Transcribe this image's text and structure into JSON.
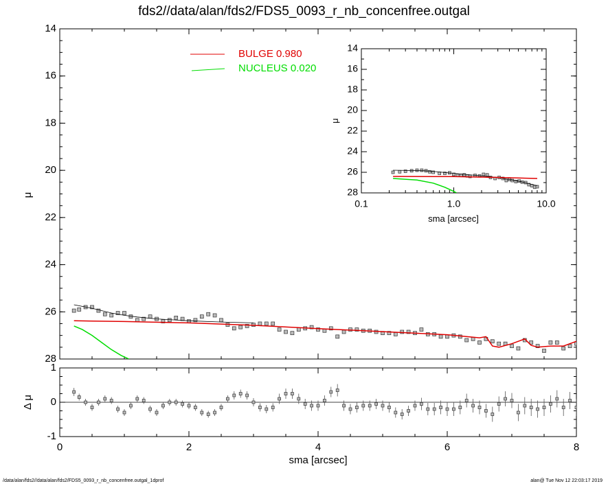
{
  "title": "fds2//data/alan/fds2/FDS5_0093_r_nb_concenfree.outgal",
  "footer": {
    "left": "/data/alan/fds2//data/alan/fds2/FDS5_0093_r_nb_concenfree.outgal_1dprof",
    "right": "alan@  Tue Nov 12 22:03:17 2019"
  },
  "colors": {
    "bulge": "#e00000",
    "nucleus": "#00dd00",
    "data": "#000000",
    "total": "#000000"
  },
  "chart_data": [
    {
      "id": "main-profile",
      "type": "scatter",
      "xlabel": "",
      "ylabel": "μ",
      "xlim": [
        0,
        8
      ],
      "ylim": [
        28,
        14
      ],
      "inverted_y": true,
      "xticks": [
        "0",
        "2",
        "4",
        "6",
        "8"
      ],
      "yticks": [
        "14",
        "16",
        "18",
        "20",
        "22",
        "24",
        "26",
        "28"
      ],
      "legend": [
        {
          "label": "BULGE  0.980",
          "color": "#e00000"
        },
        {
          "label": "NUCLEUS  0.020",
          "color": "#00dd00"
        }
      ],
      "legend_position": "top-center",
      "series": [
        {
          "name": "data",
          "kind": "markers",
          "x": [
            0.22,
            0.3,
            0.4,
            0.5,
            0.6,
            0.7,
            0.8,
            0.9,
            1.0,
            1.1,
            1.2,
            1.3,
            1.4,
            1.5,
            1.6,
            1.7,
            1.8,
            1.9,
            2.0,
            2.1,
            2.2,
            2.3,
            2.4,
            2.5,
            2.6,
            2.7,
            2.8,
            2.9,
            3.0,
            3.1,
            3.2,
            3.3,
            3.4,
            3.5,
            3.6,
            3.7,
            3.8,
            3.9,
            4.0,
            4.1,
            4.2,
            4.3,
            4.4,
            4.5,
            4.6,
            4.7,
            4.8,
            4.9,
            5.0,
            5.1,
            5.2,
            5.3,
            5.4,
            5.5,
            5.6,
            5.7,
            5.8,
            5.9,
            6.0,
            6.1,
            6.2,
            6.3,
            6.4,
            6.5,
            6.6,
            6.7,
            6.8,
            6.9,
            7.0,
            7.1,
            7.2,
            7.3,
            7.4,
            7.5,
            7.6,
            7.7,
            7.8,
            7.9,
            8.0
          ],
          "y": [
            25.95,
            25.9,
            25.8,
            25.8,
            25.95,
            26.1,
            26.15,
            26.05,
            26.05,
            26.2,
            26.35,
            26.3,
            26.2,
            26.3,
            26.4,
            26.35,
            26.25,
            26.3,
            26.4,
            26.35,
            26.2,
            26.1,
            26.15,
            26.35,
            26.55,
            26.7,
            26.65,
            26.6,
            26.55,
            26.5,
            26.5,
            26.5,
            26.75,
            26.85,
            26.9,
            26.75,
            26.7,
            26.65,
            26.75,
            26.8,
            26.7,
            27.05,
            26.85,
            26.75,
            26.75,
            26.8,
            26.8,
            26.85,
            26.9,
            26.9,
            26.95,
            26.85,
            26.85,
            26.9,
            26.75,
            26.95,
            26.95,
            27.05,
            27.05,
            27.0,
            27.05,
            27.2,
            27.15,
            27.3,
            27.15,
            27.25,
            27.35,
            27.35,
            27.45,
            27.55,
            27.2,
            27.3,
            27.45,
            27.65,
            27.3,
            27.3,
            27.55,
            27.45,
            27.35
          ]
        },
        {
          "name": "total",
          "kind": "line",
          "x": [
            0.22,
            0.5,
            0.8,
            1.0,
            1.2,
            1.5,
            2.0,
            2.5,
            3.0
          ],
          "y": [
            25.7,
            25.85,
            26.05,
            26.15,
            26.22,
            26.3,
            26.38,
            26.43,
            26.47
          ]
        },
        {
          "name": "bulge",
          "kind": "line",
          "x": [
            0.22,
            1.0,
            2.0,
            3.0,
            4.0,
            5.0,
            6.0,
            6.5,
            6.6,
            6.7,
            6.8,
            7.0,
            7.2,
            7.3,
            7.4,
            7.6,
            7.8,
            8.0
          ],
          "y": [
            26.38,
            26.41,
            26.47,
            26.57,
            26.71,
            26.84,
            26.97,
            27.1,
            27.05,
            27.45,
            27.5,
            27.35,
            27.15,
            27.42,
            27.5,
            27.45,
            27.45,
            27.25
          ]
        },
        {
          "name": "nucleus",
          "kind": "line",
          "x": [
            0.22,
            0.35,
            0.5,
            0.65,
            0.8,
            0.95,
            1.07
          ],
          "y": [
            26.6,
            26.75,
            27.0,
            27.3,
            27.6,
            27.85,
            28.0
          ]
        }
      ]
    },
    {
      "id": "inset-log",
      "type": "scatter",
      "xlabel": "sma [arcsec]",
      "ylabel": "μ",
      "xscale": "log",
      "xlim": [
        0.1,
        10.0
      ],
      "ylim": [
        28,
        14
      ],
      "inverted_y": true,
      "xticks": [
        "0.1",
        "1.0",
        "10.0"
      ],
      "yticks": [
        "14",
        "16",
        "18",
        "20",
        "22",
        "24",
        "26",
        "28"
      ],
      "series": [
        {
          "name": "data",
          "kind": "markers",
          "x": [
            0.22,
            0.26,
            0.3,
            0.35,
            0.4,
            0.45,
            0.5,
            0.55,
            0.6,
            0.7,
            0.8,
            0.9,
            1.0,
            1.1,
            1.2,
            1.3,
            1.4,
            1.5,
            1.7,
            1.9,
            2.1,
            2.3,
            2.5,
            2.8,
            3.1,
            3.4,
            3.7,
            4.0,
            4.3,
            4.7,
            5.1,
            5.5,
            6.0,
            6.5,
            7.0,
            7.5,
            8.0
          ],
          "y": [
            26.0,
            25.95,
            25.9,
            25.85,
            25.8,
            25.8,
            25.85,
            25.95,
            26.0,
            26.1,
            26.1,
            26.05,
            26.2,
            26.3,
            26.3,
            26.25,
            26.35,
            26.4,
            26.3,
            26.35,
            26.2,
            26.25,
            26.5,
            26.6,
            26.5,
            26.6,
            26.8,
            26.7,
            26.8,
            26.9,
            26.85,
            26.95,
            27.0,
            27.2,
            27.3,
            27.45,
            27.4
          ]
        },
        {
          "name": "total",
          "kind": "line",
          "x": [
            0.22,
            0.5,
            1.0,
            2.0,
            3.0,
            5.0,
            8.0
          ],
          "y": [
            25.8,
            25.85,
            26.1,
            26.35,
            26.5,
            26.85,
            27.3
          ]
        },
        {
          "name": "bulge",
          "kind": "line",
          "x": [
            0.22,
            1.0,
            3.0,
            8.0
          ],
          "y": [
            26.4,
            26.42,
            26.5,
            26.6
          ]
        },
        {
          "name": "nucleus",
          "kind": "line",
          "x": [
            0.22,
            0.4,
            0.6,
            0.8,
            1.0,
            1.07
          ],
          "y": [
            26.6,
            26.75,
            27.05,
            27.45,
            27.85,
            28.0
          ]
        }
      ]
    },
    {
      "id": "residuals",
      "type": "scatter",
      "xlabel": "sma [arcsec]",
      "ylabel": "Δ μ",
      "xlim": [
        0,
        8
      ],
      "ylim": [
        -1.0,
        1.0
      ],
      "xticks": [
        "0",
        "2",
        "4",
        "6",
        "8"
      ],
      "yticks": [
        "-1",
        "0",
        "1"
      ],
      "series": [
        {
          "name": "residual",
          "kind": "markers_errorbars",
          "x": [
            0.22,
            0.3,
            0.4,
            0.5,
            0.6,
            0.7,
            0.8,
            0.9,
            1.0,
            1.1,
            1.2,
            1.3,
            1.4,
            1.5,
            1.6,
            1.7,
            1.8,
            1.9,
            2.0,
            2.1,
            2.2,
            2.3,
            2.4,
            2.5,
            2.6,
            2.7,
            2.8,
            2.9,
            3.0,
            3.1,
            3.2,
            3.3,
            3.4,
            3.5,
            3.6,
            3.7,
            3.8,
            3.9,
            4.0,
            4.1,
            4.2,
            4.3,
            4.4,
            4.5,
            4.6,
            4.7,
            4.8,
            4.9,
            5.0,
            5.1,
            5.2,
            5.3,
            5.4,
            5.5,
            5.6,
            5.7,
            5.8,
            5.9,
            6.0,
            6.1,
            6.2,
            6.3,
            6.4,
            6.5,
            6.6,
            6.7,
            6.8,
            6.9,
            7.0,
            7.1,
            7.2,
            7.3,
            7.4,
            7.5,
            7.6,
            7.7,
            7.8,
            7.9,
            8.0
          ],
          "y": [
            0.3,
            0.15,
            0.0,
            -0.15,
            0.0,
            0.1,
            0.05,
            -0.2,
            -0.3,
            -0.1,
            0.1,
            0.05,
            -0.2,
            -0.3,
            -0.1,
            0.0,
            0.0,
            -0.05,
            -0.1,
            -0.15,
            -0.3,
            -0.35,
            -0.3,
            -0.15,
            0.1,
            0.2,
            0.25,
            0.2,
            0.0,
            -0.15,
            -0.2,
            -0.15,
            0.1,
            0.25,
            0.25,
            0.1,
            -0.05,
            -0.1,
            -0.1,
            0.05,
            0.3,
            0.35,
            -0.1,
            -0.2,
            -0.15,
            -0.1,
            -0.1,
            -0.05,
            -0.1,
            -0.15,
            -0.3,
            -0.35,
            -0.25,
            -0.1,
            -0.05,
            -0.2,
            -0.2,
            -0.15,
            -0.2,
            -0.2,
            -0.15,
            0.05,
            -0.1,
            -0.15,
            -0.25,
            -0.35,
            -0.05,
            0.1,
            0.05,
            -0.3,
            -0.1,
            -0.15,
            -0.2,
            -0.15,
            -0.05,
            0.1,
            -0.15,
            0.05,
            -0.15
          ],
          "err": [
            0.12,
            0.1,
            0.1,
            0.1,
            0.1,
            0.1,
            0.1,
            0.1,
            0.1,
            0.1,
            0.1,
            0.1,
            0.1,
            0.1,
            0.1,
            0.1,
            0.1,
            0.1,
            0.1,
            0.1,
            0.1,
            0.1,
            0.1,
            0.1,
            0.1,
            0.12,
            0.12,
            0.12,
            0.12,
            0.12,
            0.12,
            0.12,
            0.15,
            0.15,
            0.15,
            0.15,
            0.15,
            0.15,
            0.15,
            0.15,
            0.15,
            0.18,
            0.15,
            0.15,
            0.15,
            0.15,
            0.15,
            0.15,
            0.15,
            0.15,
            0.15,
            0.15,
            0.15,
            0.15,
            0.18,
            0.18,
            0.18,
            0.2,
            0.2,
            0.2,
            0.2,
            0.2,
            0.2,
            0.2,
            0.2,
            0.22,
            0.22,
            0.22,
            0.22,
            0.25,
            0.25,
            0.25,
            0.25,
            0.25,
            0.25,
            0.25,
            0.25,
            0.25,
            0.25
          ]
        }
      ]
    }
  ]
}
